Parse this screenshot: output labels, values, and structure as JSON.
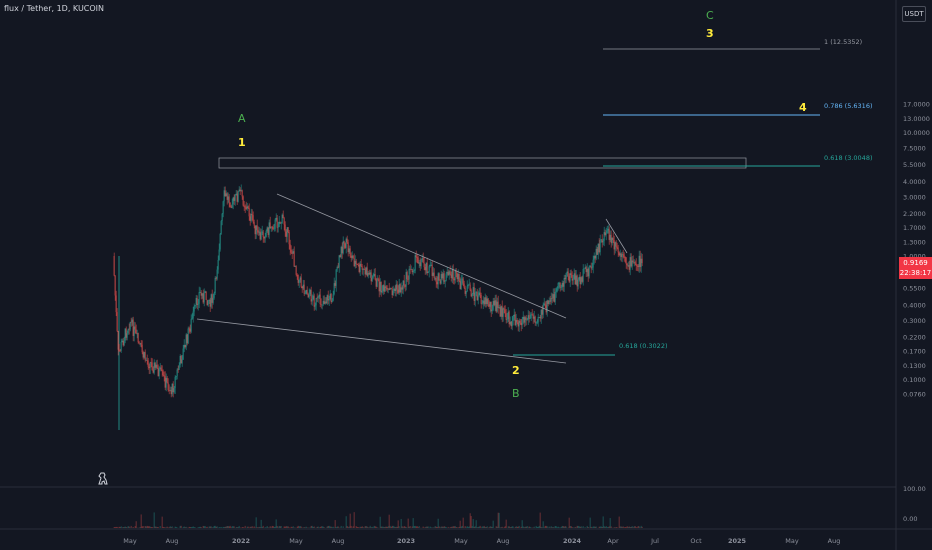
{
  "header": {
    "title": "flux / Tether, 1D, KUCOIN",
    "unit_button": "USDT"
  },
  "price_scale": [
    {
      "label": "17.0000",
      "value": 17.0
    },
    {
      "label": "13.0000",
      "value": 13.0
    },
    {
      "label": "10.0000",
      "value": 10.0
    },
    {
      "label": "7.5000",
      "value": 7.5
    },
    {
      "label": "5.5000",
      "value": 5.5
    },
    {
      "label": "4.0000",
      "value": 4.0
    },
    {
      "label": "3.0000",
      "value": 3.0
    },
    {
      "label": "2.2000",
      "value": 2.2
    },
    {
      "label": "1.7000",
      "value": 1.7
    },
    {
      "label": "1.3000",
      "value": 1.3
    },
    {
      "label": "1.0000",
      "value": 1.0
    },
    {
      "label": "0.7500",
      "value": 0.75
    },
    {
      "label": "0.5500",
      "value": 0.55
    },
    {
      "label": "0.4000",
      "value": 0.4
    },
    {
      "label": "0.3000",
      "value": 0.3
    },
    {
      "label": "0.2200",
      "value": 0.22
    },
    {
      "label": "0.1700",
      "value": 0.17
    },
    {
      "label": "0.1300",
      "value": 0.13
    },
    {
      "label": "0.1000",
      "value": 0.1
    },
    {
      "label": "0.0760",
      "value": 0.076
    }
  ],
  "volume_scale": [
    {
      "label": "100.00"
    },
    {
      "label": "0.00"
    }
  ],
  "time_axis": [
    {
      "label": "May",
      "bold": false
    },
    {
      "label": "Aug",
      "bold": false
    },
    {
      "label": "2022",
      "bold": true
    },
    {
      "label": "May",
      "bold": false
    },
    {
      "label": "Aug",
      "bold": false
    },
    {
      "label": "2023",
      "bold": true
    },
    {
      "label": "May",
      "bold": false
    },
    {
      "label": "Aug",
      "bold": false
    },
    {
      "label": "2024",
      "bold": true
    },
    {
      "label": "Apr",
      "bold": false
    },
    {
      "label": "Jul",
      "bold": false
    },
    {
      "label": "Oct",
      "bold": false
    },
    {
      "label": "2025",
      "bold": true
    },
    {
      "label": "May",
      "bold": false
    },
    {
      "label": "Aug",
      "bold": false
    }
  ],
  "current_price": {
    "price": "0.9169",
    "countdown": "22:38:17"
  },
  "wave_labels": [
    {
      "text": "C",
      "color": "#4caf50"
    },
    {
      "text": "3",
      "color": "#ffeb3b"
    },
    {
      "text": "A",
      "color": "#4caf50"
    },
    {
      "text": "1",
      "color": "#ffeb3b"
    },
    {
      "text": "4",
      "color": "#ffeb3b"
    },
    {
      "text": "2",
      "color": "#ffeb3b"
    },
    {
      "text": "B",
      "color": "#4caf50"
    }
  ],
  "fib_levels": [
    {
      "text": "1 (12.5352)",
      "color": "#9598a1"
    },
    {
      "text": "0.786 (5.6316)",
      "color": "#64b5f6"
    },
    {
      "text": "0.618 (3.0048)",
      "color": "#26a69a"
    },
    {
      "text": "0.618 (0.3022)",
      "color": "#26a69a"
    }
  ],
  "colors": {
    "up": "#26a69a",
    "down": "#ef5350",
    "background": "#131722",
    "price_tag": "#f23645"
  },
  "chart_data": {
    "type": "line",
    "scale": "log",
    "symbol": "flux / Tether",
    "interval": "1D",
    "exchange": "KUCOIN",
    "ylim": [
      0.07,
      20
    ],
    "series": [
      {
        "values": [
          [
            "2021-03-25",
            1.0
          ],
          [
            "2021-04-05",
            0.16
          ],
          [
            "2021-05-01",
            0.3
          ],
          [
            "2021-06-01",
            0.15
          ],
          [
            "2021-07-01",
            0.12
          ],
          [
            "2021-08-01",
            0.08
          ],
          [
            "2021-09-01",
            0.2
          ],
          [
            "2021-10-01",
            0.5
          ],
          [
            "2021-11-01",
            0.42
          ],
          [
            "2021-11-25",
            3.1
          ],
          [
            "2021-12-15",
            2.7
          ],
          [
            "2021-12-29",
            3.3
          ],
          [
            "2022-01-15",
            2.4
          ],
          [
            "2022-02-10",
            1.4
          ],
          [
            "2022-03-10",
            1.8
          ],
          [
            "2022-04-05",
            1.95
          ],
          [
            "2022-05-10",
            0.62
          ],
          [
            "2022-06-15",
            0.42
          ],
          [
            "2022-07-20",
            0.46
          ],
          [
            "2022-08-15",
            1.35
          ],
          [
            "2022-09-15",
            0.8
          ],
          [
            "2022-10-15",
            0.7
          ],
          [
            "2022-11-15",
            0.5
          ],
          [
            "2022-12-20",
            0.55
          ],
          [
            "2023-01-25",
            0.97
          ],
          [
            "2023-02-20",
            0.8
          ],
          [
            "2023-03-15",
            0.62
          ],
          [
            "2023-04-10",
            0.72
          ],
          [
            "2023-05-10",
            0.55
          ],
          [
            "2023-06-15",
            0.45
          ],
          [
            "2023-07-20",
            0.38
          ],
          [
            "2023-08-18",
            0.3
          ],
          [
            "2023-09-20",
            0.31
          ],
          [
            "2023-10-20",
            0.33
          ],
          [
            "2023-11-20",
            0.45
          ],
          [
            "2023-12-20",
            0.7
          ],
          [
            "2024-01-15",
            0.62
          ],
          [
            "2024-02-15",
            0.85
          ],
          [
            "2024-03-15",
            1.62
          ],
          [
            "2024-04-05",
            1.15
          ],
          [
            "2024-04-25",
            0.9
          ],
          [
            "2024-05-15",
            0.85
          ],
          [
            "2024-06-04",
            0.92
          ]
        ]
      }
    ]
  }
}
